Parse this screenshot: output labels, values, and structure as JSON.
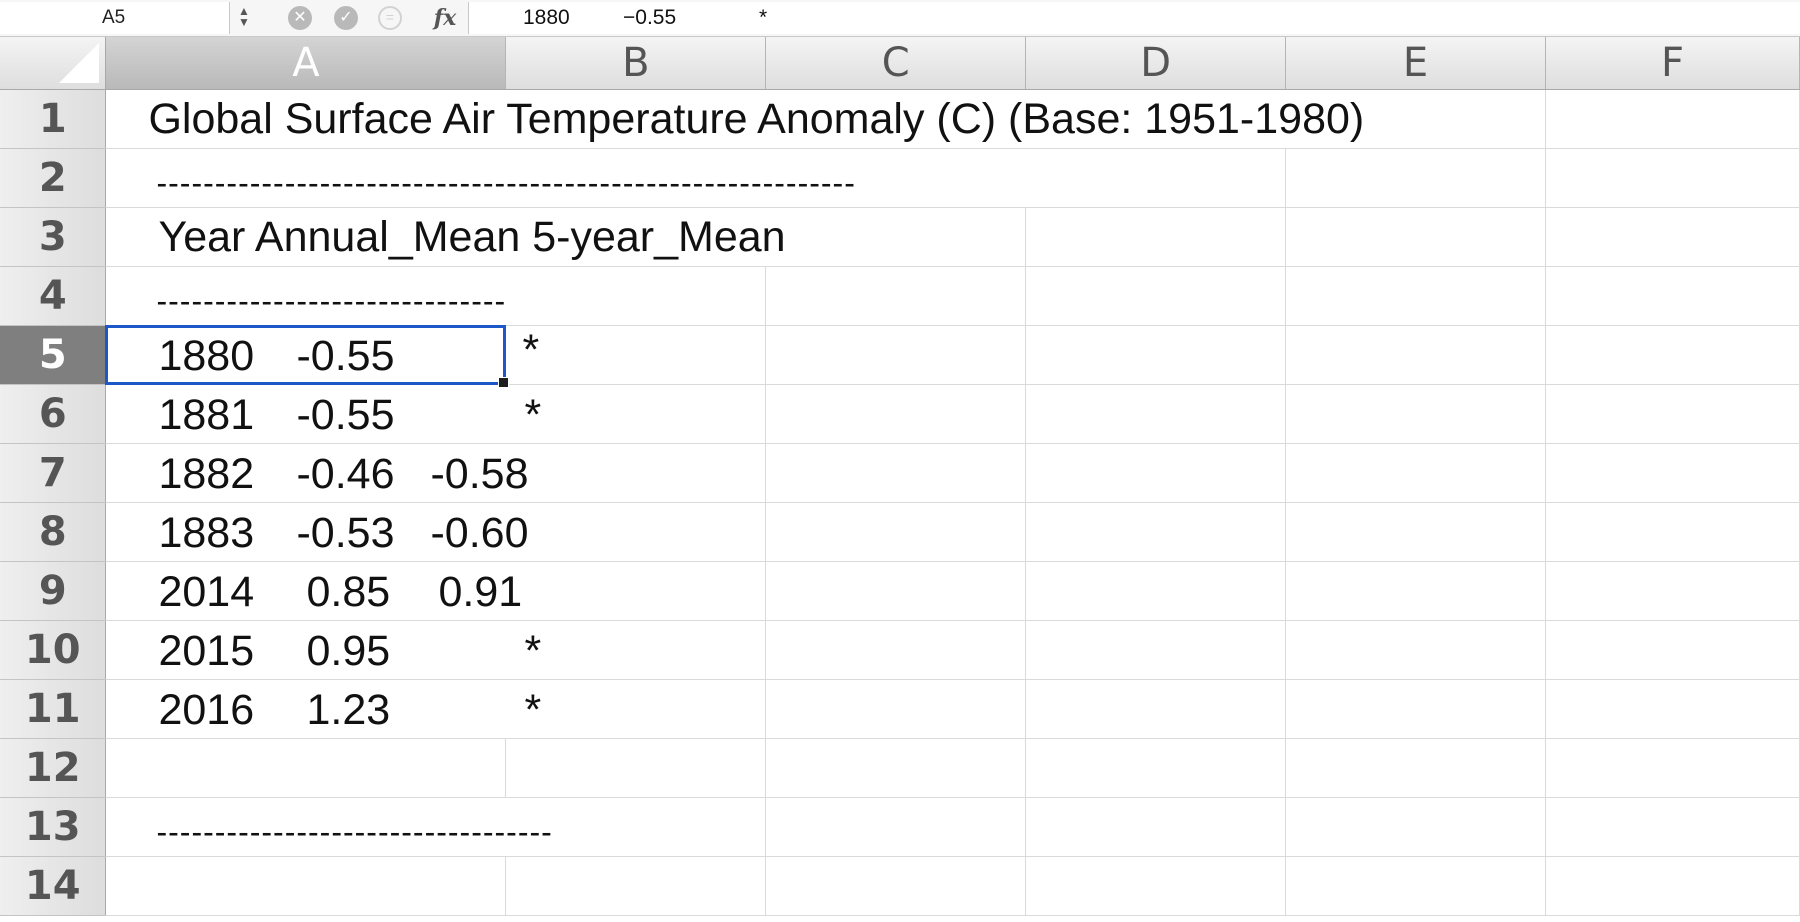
{
  "formula_bar": {
    "name_box": "A5",
    "stepper_icon": "up-down-arrows-icon",
    "cancel_icon": "cancel-icon",
    "enter_icon": "enter-checkmark-icon",
    "function_icon": "function-icon",
    "fx_label": "fx",
    "content_parts": [
      "1880",
      "−0.55",
      "*"
    ]
  },
  "columns": [
    "A",
    "B",
    "C",
    "D",
    "E",
    "F"
  ],
  "selected_column": "A",
  "selected_row": "5",
  "rows": [
    {
      "num": "1",
      "a": "Global Surface Air Temperature Anomaly (C) (Base: 1951-1980)"
    },
    {
      "num": "2",
      "a": "------------------------------------------------------------"
    },
    {
      "num": "3",
      "a": "Year  Annual_Mean 5-year_Mean"
    },
    {
      "num": "4",
      "a": "------------------------------"
    },
    {
      "num": "5",
      "year": "1880",
      "annual": "-0.55",
      "five": "*"
    },
    {
      "num": "6",
      "year": "1881",
      "annual": "-0.55",
      "five": "*"
    },
    {
      "num": "7",
      "year": "1882",
      "annual": "-0.46",
      "five": "-0.58"
    },
    {
      "num": "8",
      "year": "1883",
      "annual": "-0.53",
      "five": "-0.60"
    },
    {
      "num": "9",
      "year": "2014",
      "annual": "0.85",
      "five": "0.91"
    },
    {
      "num": "10",
      "year": "2015",
      "annual": "0.95",
      "five": "*"
    },
    {
      "num": "11",
      "year": "2016",
      "annual": "1.23",
      "five": "*"
    },
    {
      "num": "12",
      "a": ""
    },
    {
      "num": "13",
      "a": "----------------------------------"
    },
    {
      "num": "14",
      "a": ""
    }
  ],
  "colors": {
    "selection_border": "#1d58c9",
    "selected_header": "#7f7f7f"
  }
}
